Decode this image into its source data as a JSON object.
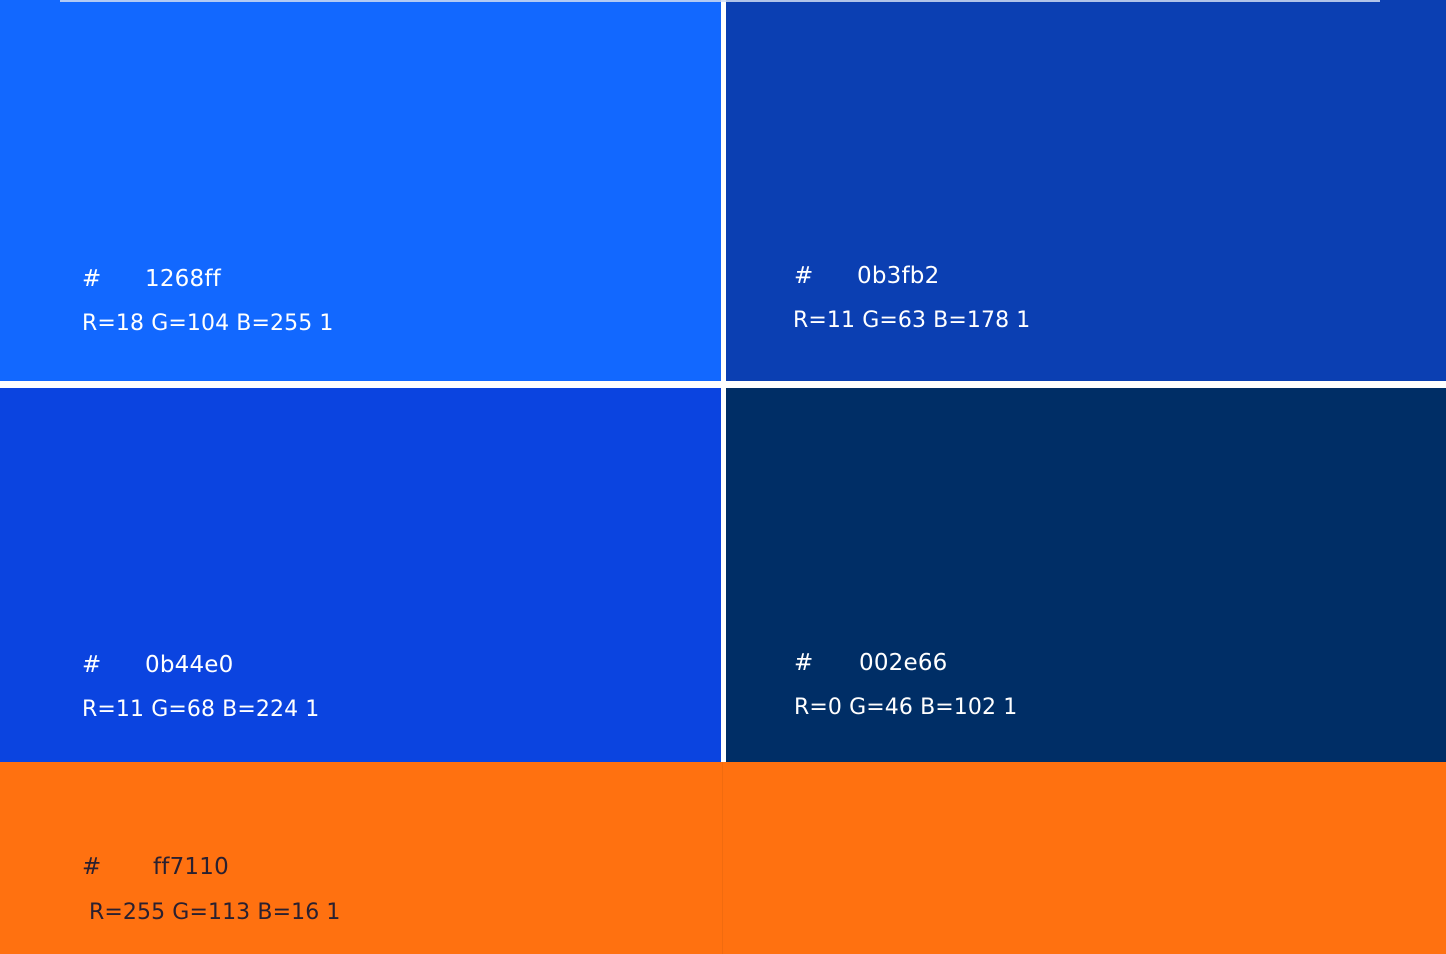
{
  "swatches": [
    {
      "hash": "#",
      "hex": "1268ff",
      "rgb": "R=18 G=104 B=255 1",
      "color": "#1268ff"
    },
    {
      "hash": "#",
      "hex": "0b3fb2",
      "rgb": "R=11 G=63 B=178 1",
      "color": "#0b3fb2"
    },
    {
      "hash": "#",
      "hex": "0b44e0",
      "rgb": "R=11 G=68 B=224 1",
      "color": "#0b44e0"
    },
    {
      "hash": "#",
      "hex": "002e66",
      "rgb": "R=0 G=46 B=102 1",
      "color": "#002e66"
    },
    {
      "hash": "#",
      "hex": "ff7110",
      "rgb": "R=255 G=113 B=16 1",
      "color": "#ff7110"
    }
  ]
}
